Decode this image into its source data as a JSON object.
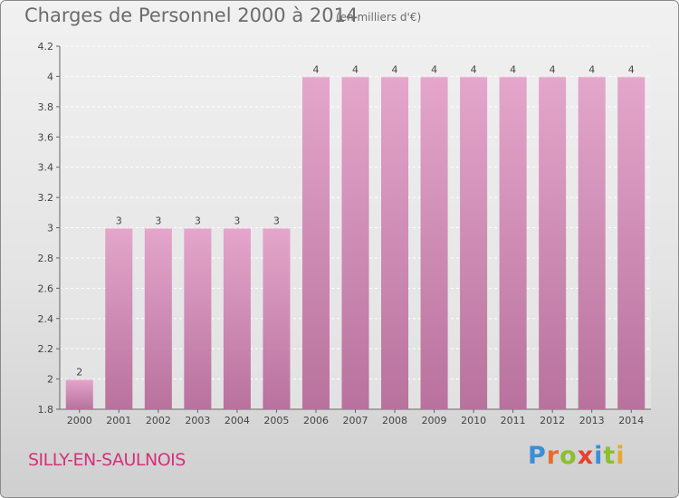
{
  "chart_data": {
    "type": "bar",
    "title": "Charges de Personnel 2000 à 2014",
    "subtitle": "(en milliers d'€)",
    "categories": [
      "2000",
      "2001",
      "2002",
      "2003",
      "2004",
      "2005",
      "2006",
      "2007",
      "2008",
      "2009",
      "2010",
      "2011",
      "2012",
      "2013",
      "2014"
    ],
    "values": [
      2,
      3,
      3,
      3,
      3,
      3,
      4,
      4,
      4,
      4,
      4,
      4,
      4,
      4,
      4
    ],
    "value_labels": [
      "2",
      "3",
      "3",
      "3",
      "3",
      "3",
      "4",
      "4",
      "4",
      "4",
      "4",
      "4",
      "4",
      "4",
      "4"
    ],
    "ylim": [
      1.8,
      4.2
    ],
    "yticks": [
      "1.8",
      "2",
      "2.2",
      "2.4",
      "2.6",
      "2.8",
      "3",
      "3.2",
      "3.4",
      "3.6",
      "3.8",
      "4",
      "4.2"
    ],
    "grid": true,
    "bar_color_top": "#e4a6cb",
    "bar_color_bottom": "#b8729d"
  },
  "footer": {
    "commune": "SILLY-EN-SAULNOIS",
    "brand_letters": [
      {
        "ch": "P",
        "color": "#3a8fd6"
      },
      {
        "ch": "r",
        "color": "#e86c2c"
      },
      {
        "ch": "o",
        "color": "#8bbf2e"
      },
      {
        "ch": "x",
        "color": "#e8402c"
      },
      {
        "ch": "i",
        "color": "#3a8fd6"
      },
      {
        "ch": "t",
        "color": "#8bbf2e"
      },
      {
        "ch": "i",
        "color": "#e8a82c"
      }
    ]
  }
}
